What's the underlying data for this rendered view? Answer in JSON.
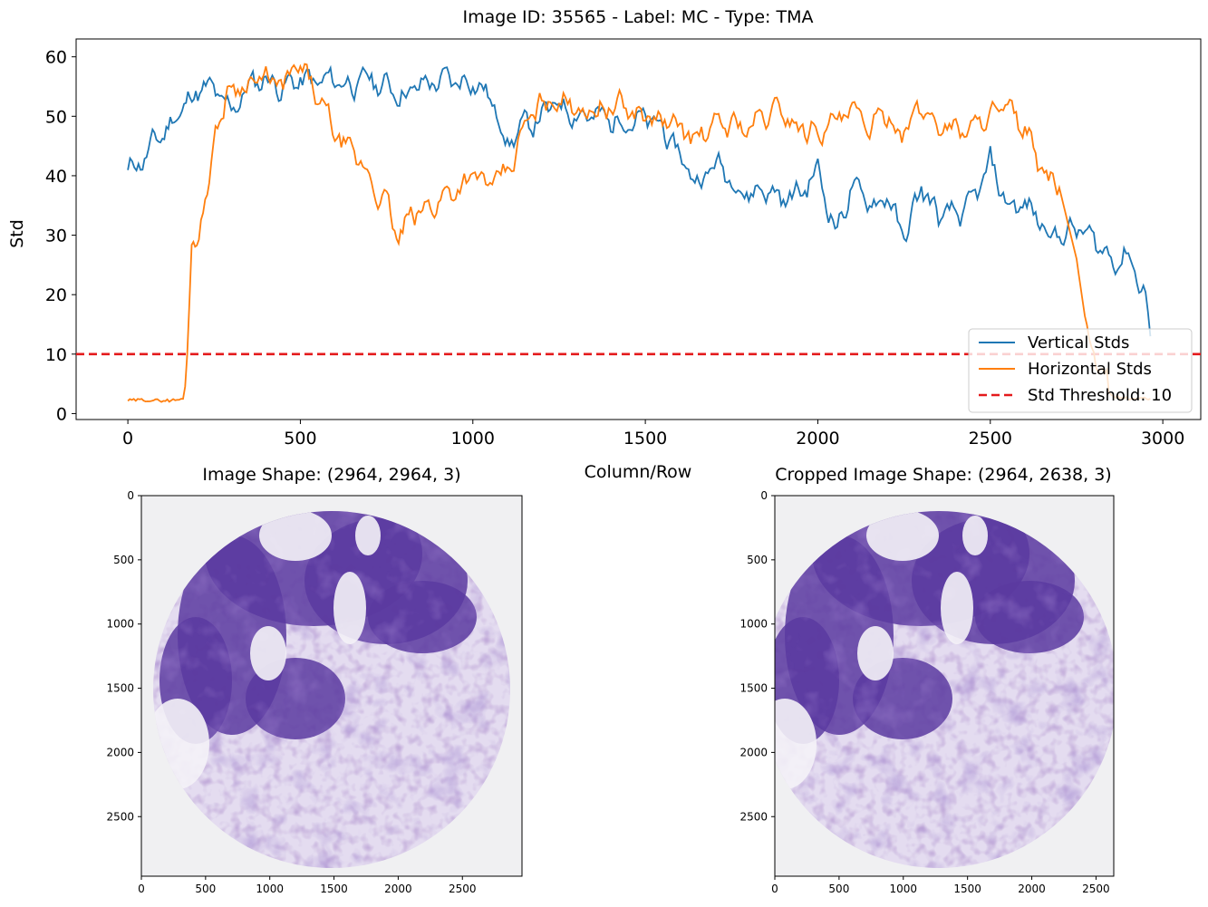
{
  "title": "Image ID: 35565 - Label: MC - Type: TMA",
  "colors": {
    "vertical": "#1f77b4",
    "horizontal": "#ff7f0e",
    "threshold": "#e41a1c",
    "tissue_dark": "#5b3aa0",
    "tissue_light": "#c7b6e4",
    "background": "#f0f0f2"
  },
  "chart_data": [
    {
      "type": "line",
      "xlabel": "Column/Row",
      "ylabel": "Std",
      "xlim": [
        -150,
        3110
      ],
      "ylim": [
        -1,
        63
      ],
      "x_ticks": [
        0,
        500,
        1000,
        1500,
        2000,
        2500,
        3000
      ],
      "y_ticks": [
        0,
        10,
        20,
        30,
        40,
        50,
        60
      ],
      "grid": false,
      "legend_position": "lower-right",
      "threshold": {
        "name": "Std Threshold: 10",
        "value": 10
      },
      "series": [
        {
          "name": "Vertical Stds",
          "x": [
            0,
            25,
            60,
            100,
            140,
            180,
            220,
            260,
            300,
            350,
            400,
            450,
            500,
            550,
            600,
            650,
            700,
            750,
            800,
            850,
            900,
            950,
            1000,
            1050,
            1100,
            1150,
            1200,
            1250,
            1300,
            1350,
            1400,
            1450,
            1500,
            1550,
            1600,
            1650,
            1700,
            1750,
            1800,
            1850,
            1900,
            1950,
            2000,
            2050,
            2100,
            2150,
            2200,
            2250,
            2300,
            2350,
            2400,
            2450,
            2500,
            2550,
            2600,
            2650,
            2700,
            2750,
            2800,
            2850,
            2900,
            2950,
            2964
          ],
          "y": [
            40.5,
            42,
            44,
            47,
            50,
            53,
            55,
            53,
            51,
            55,
            56.5,
            55,
            56,
            55.5,
            56,
            55.5,
            56,
            55,
            54,
            55,
            56,
            55.5,
            56.5,
            53,
            46,
            48,
            50,
            52,
            51,
            50,
            49,
            50,
            49,
            48,
            43,
            39,
            42,
            40,
            37,
            38,
            36,
            37,
            41,
            31,
            38,
            35,
            37,
            29,
            38,
            33,
            33,
            35,
            42,
            35,
            35,
            32,
            30,
            31,
            29,
            26,
            27,
            20,
            13
          ]
        },
        {
          "name": "Horizontal Stds",
          "x": [
            0,
            40,
            80,
            120,
            160,
            172,
            185,
            200,
            230,
            260,
            300,
            350,
            400,
            450,
            500,
            550,
            600,
            650,
            700,
            750,
            785,
            820,
            860,
            900,
            950,
            1000,
            1050,
            1100,
            1150,
            1200,
            1250,
            1300,
            1350,
            1400,
            1450,
            1500,
            1550,
            1600,
            1650,
            1700,
            1750,
            1800,
            1850,
            1900,
            1950,
            2000,
            2050,
            2100,
            2150,
            2200,
            2250,
            2300,
            2350,
            2400,
            2450,
            2500,
            2550,
            2600,
            2650,
            2700,
            2750,
            2780,
            2800,
            2850,
            2900,
            2964
          ],
          "y": [
            2.2,
            2.3,
            2.2,
            2.2,
            2.4,
            10,
            28,
            30,
            38,
            49,
            55,
            56,
            56,
            55,
            58,
            53,
            47,
            43,
            40,
            35,
            29,
            33,
            34,
            36,
            38,
            40,
            38,
            40,
            48,
            52,
            53,
            52,
            51,
            52,
            51,
            50,
            49,
            48,
            46,
            48,
            49,
            48,
            50,
            51,
            48,
            48,
            49,
            50,
            48,
            50,
            48,
            51,
            49,
            48,
            48,
            51,
            50,
            48,
            40,
            38,
            26,
            14,
            9,
            3,
            2.5,
            2.5
          ]
        }
      ]
    },
    {
      "type": "image",
      "title": "Image Shape: (2964, 2964, 3)",
      "xlim": [
        0,
        2964
      ],
      "ylim": [
        2964,
        0
      ],
      "x_ticks": [
        0,
        500,
        1000,
        1500,
        2000,
        2500
      ],
      "y_ticks": [
        0,
        500,
        1000,
        1500,
        2000,
        2500
      ]
    },
    {
      "type": "image",
      "title": "Cropped Image Shape: (2964, 2638, 3)",
      "xlim": [
        0,
        2638
      ],
      "ylim": [
        2964,
        0
      ],
      "x_ticks": [
        0,
        500,
        1000,
        1500,
        2000,
        2500
      ],
      "y_ticks": [
        0,
        500,
        1000,
        1500,
        2000,
        2500
      ]
    }
  ]
}
